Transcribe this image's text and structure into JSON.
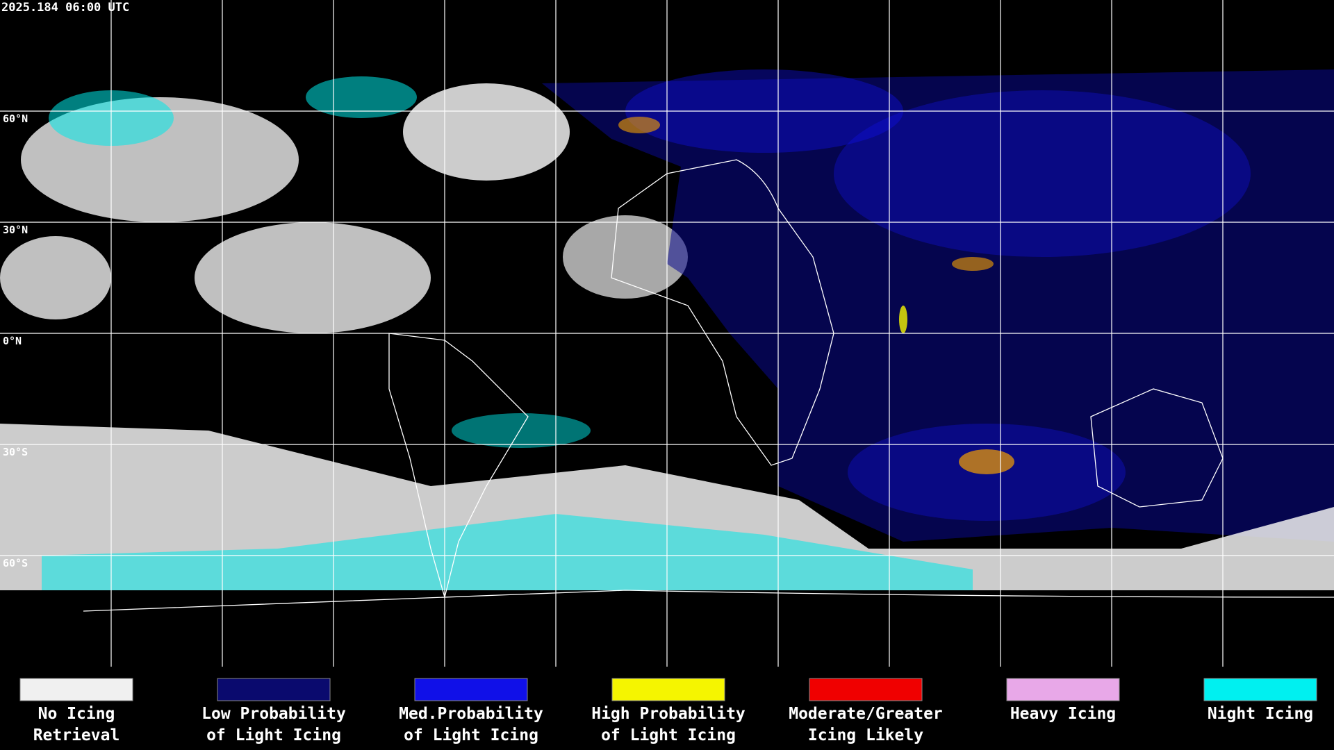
{
  "header": {
    "timestamp": "2025.184 06:00 UTC"
  },
  "latitude_lines": [
    {
      "value": 60,
      "label": "60°N"
    },
    {
      "value": 30,
      "label": "30°N"
    },
    {
      "value": 0,
      "label": "0°N"
    },
    {
      "value": -30,
      "label": "30°S"
    },
    {
      "value": -60,
      "label": "60°S"
    }
  ],
  "legend": [
    {
      "color": "#f0f0f0",
      "lines": [
        "No Icing",
        "Retrieval"
      ]
    },
    {
      "color": "#0a0a6e",
      "lines": [
        "Low Probability",
        "of Light Icing"
      ]
    },
    {
      "color": "#1010e8",
      "lines": [
        "Med.Probability",
        "of Light Icing"
      ]
    },
    {
      "color": "#f5f500",
      "lines": [
        "High Probability",
        "of Light Icing"
      ]
    },
    {
      "color": "#f00000",
      "lines": [
        "Moderate/Greater",
        "Icing Likely"
      ]
    },
    {
      "color": "#e8a8e8",
      "lines": [
        "Heavy Icing"
      ]
    },
    {
      "color": "#00f0f0",
      "lines": [
        "Night Icing"
      ]
    }
  ]
}
